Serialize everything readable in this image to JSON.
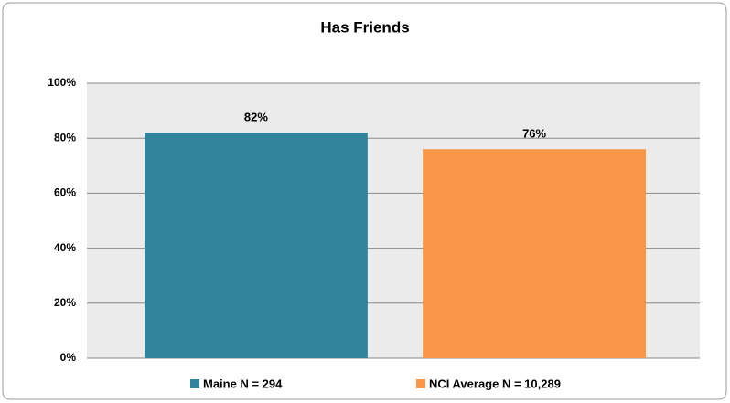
{
  "chart_data": {
    "type": "bar",
    "title": "Has Friends",
    "categories": [
      null
    ],
    "series": [
      {
        "name": "Maine N = 294",
        "color": "#31849b",
        "values": [
          82
        ],
        "value_labels": [
          "82%"
        ]
      },
      {
        "name": "NCI Average N = 10,289",
        "color": "#f79646",
        "values": [
          76
        ],
        "value_labels": [
          "76%"
        ]
      }
    ],
    "ylim": [
      0,
      100
    ],
    "yticks": [
      {
        "value": 0,
        "label": "0%"
      },
      {
        "value": 20,
        "label": "20%"
      },
      {
        "value": 40,
        "label": "40%"
      },
      {
        "value": 60,
        "label": "60%"
      },
      {
        "value": 80,
        "label": "80%"
      },
      {
        "value": 100,
        "label": "100%"
      }
    ],
    "grid": true,
    "legend": "bottom"
  }
}
